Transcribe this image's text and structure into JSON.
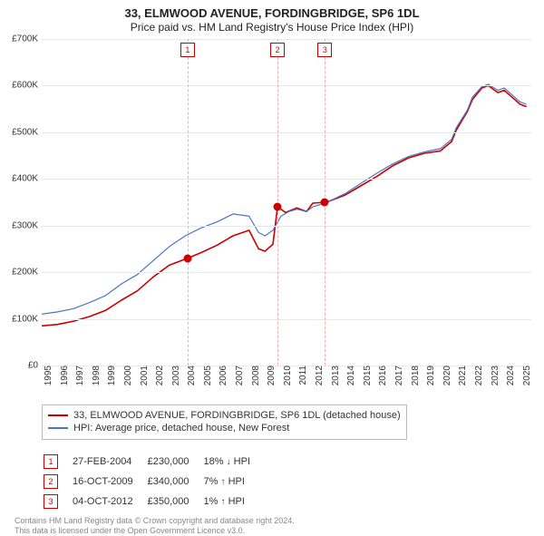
{
  "title": "33, ELMWOOD AVENUE, FORDINGBRIDGE, SP6 1DL",
  "subtitle": "Price paid vs. HM Land Registry's House Price Index (HPI)",
  "chart": {
    "type": "line",
    "background_color": "#ffffff",
    "grid_color": "#e8e8e8",
    "title_fontsize": 13,
    "label_fontsize": 10,
    "x": {
      "min": 1995,
      "max": 2025.7,
      "ticks": [
        1995,
        1996,
        1997,
        1998,
        1999,
        2000,
        2001,
        2002,
        2003,
        2004,
        2005,
        2006,
        2007,
        2008,
        2009,
        2010,
        2011,
        2012,
        2013,
        2014,
        2015,
        2016,
        2017,
        2018,
        2019,
        2020,
        2021,
        2022,
        2023,
        2024,
        2025
      ]
    },
    "y": {
      "min": 0,
      "max": 700000,
      "tick_step": 100000,
      "tick_labels": [
        "£0",
        "£100K",
        "£200K",
        "£300K",
        "£400K",
        "£500K",
        "£600K",
        "£700K"
      ]
    },
    "series": [
      {
        "name": "33, ELMWOOD AVENUE, FORDINGBRIDGE, SP6 1DL (detached house)",
        "color": "#cc0000",
        "width": 1.6,
        "data": [
          [
            1995,
            85000
          ],
          [
            1996,
            88000
          ],
          [
            1997,
            95000
          ],
          [
            1998,
            105000
          ],
          [
            1999,
            118000
          ],
          [
            2000,
            140000
          ],
          [
            2001,
            160000
          ],
          [
            2002,
            190000
          ],
          [
            2003,
            215000
          ],
          [
            2004.15,
            230000
          ],
          [
            2005,
            242000
          ],
          [
            2006,
            258000
          ],
          [
            2007,
            278000
          ],
          [
            2008,
            290000
          ],
          [
            2008.6,
            250000
          ],
          [
            2009,
            245000
          ],
          [
            2009.5,
            260000
          ],
          [
            2009.79,
            340000
          ],
          [
            2010.3,
            328000
          ],
          [
            2011,
            338000
          ],
          [
            2011.6,
            330000
          ],
          [
            2012,
            348000
          ],
          [
            2012.76,
            350000
          ],
          [
            2013,
            352000
          ],
          [
            2014,
            365000
          ],
          [
            2015,
            385000
          ],
          [
            2016,
            405000
          ],
          [
            2017,
            428000
          ],
          [
            2018,
            445000
          ],
          [
            2019,
            455000
          ],
          [
            2020,
            460000
          ],
          [
            2020.7,
            480000
          ],
          [
            2021,
            505000
          ],
          [
            2021.7,
            545000
          ],
          [
            2022,
            570000
          ],
          [
            2022.6,
            595000
          ],
          [
            2023,
            600000
          ],
          [
            2023.6,
            585000
          ],
          [
            2024,
            590000
          ],
          [
            2024.5,
            575000
          ],
          [
            2025,
            560000
          ],
          [
            2025.4,
            555000
          ]
        ]
      },
      {
        "name": "HPI: Average price, detached house, New Forest",
        "color": "#4a76c7",
        "width": 1.2,
        "data": [
          [
            1995,
            110000
          ],
          [
            1996,
            115000
          ],
          [
            1997,
            122000
          ],
          [
            1998,
            135000
          ],
          [
            1999,
            150000
          ],
          [
            2000,
            175000
          ],
          [
            2001,
            195000
          ],
          [
            2002,
            225000
          ],
          [
            2003,
            255000
          ],
          [
            2004,
            278000
          ],
          [
            2005,
            295000
          ],
          [
            2006,
            308000
          ],
          [
            2007,
            325000
          ],
          [
            2008,
            320000
          ],
          [
            2008.6,
            285000
          ],
          [
            2009,
            278000
          ],
          [
            2009.5,
            290000
          ],
          [
            2010,
            320000
          ],
          [
            2010.5,
            330000
          ],
          [
            2011,
            335000
          ],
          [
            2011.6,
            330000
          ],
          [
            2012,
            340000
          ],
          [
            2012.76,
            348000
          ],
          [
            2013,
            352000
          ],
          [
            2014,
            368000
          ],
          [
            2015,
            390000
          ],
          [
            2016,
            412000
          ],
          [
            2017,
            432000
          ],
          [
            2018,
            448000
          ],
          [
            2019,
            458000
          ],
          [
            2020,
            465000
          ],
          [
            2020.7,
            485000
          ],
          [
            2021,
            510000
          ],
          [
            2021.7,
            548000
          ],
          [
            2022,
            575000
          ],
          [
            2022.6,
            598000
          ],
          [
            2023,
            603000
          ],
          [
            2023.6,
            590000
          ],
          [
            2024,
            595000
          ],
          [
            2024.5,
            580000
          ],
          [
            2025,
            565000
          ],
          [
            2025.4,
            560000
          ]
        ]
      }
    ],
    "events": [
      {
        "n": "1",
        "x": 2004.15,
        "date": "27-FEB-2004",
        "price": "£230,000",
        "delta": "18%",
        "dir": "down",
        "dir_glyph": "↓",
        "vs": "HPI",
        "marker_y": 230000
      },
      {
        "n": "2",
        "x": 2009.79,
        "date": "16-OCT-2009",
        "price": "£340,000",
        "delta": "7%",
        "dir": "up",
        "dir_glyph": "↑",
        "vs": "HPI",
        "marker_y": 340000
      },
      {
        "n": "3",
        "x": 2012.76,
        "date": "04-OCT-2012",
        "price": "£350,000",
        "delta": "1%",
        "dir": "up",
        "dir_glyph": "↑",
        "vs": "HPI",
        "marker_y": 350000
      }
    ]
  },
  "footer": {
    "l1": "Contains HM Land Registry data © Crown copyright and database right 2024.",
    "l2": "This data is licensed under the Open Government Licence v3.0."
  }
}
